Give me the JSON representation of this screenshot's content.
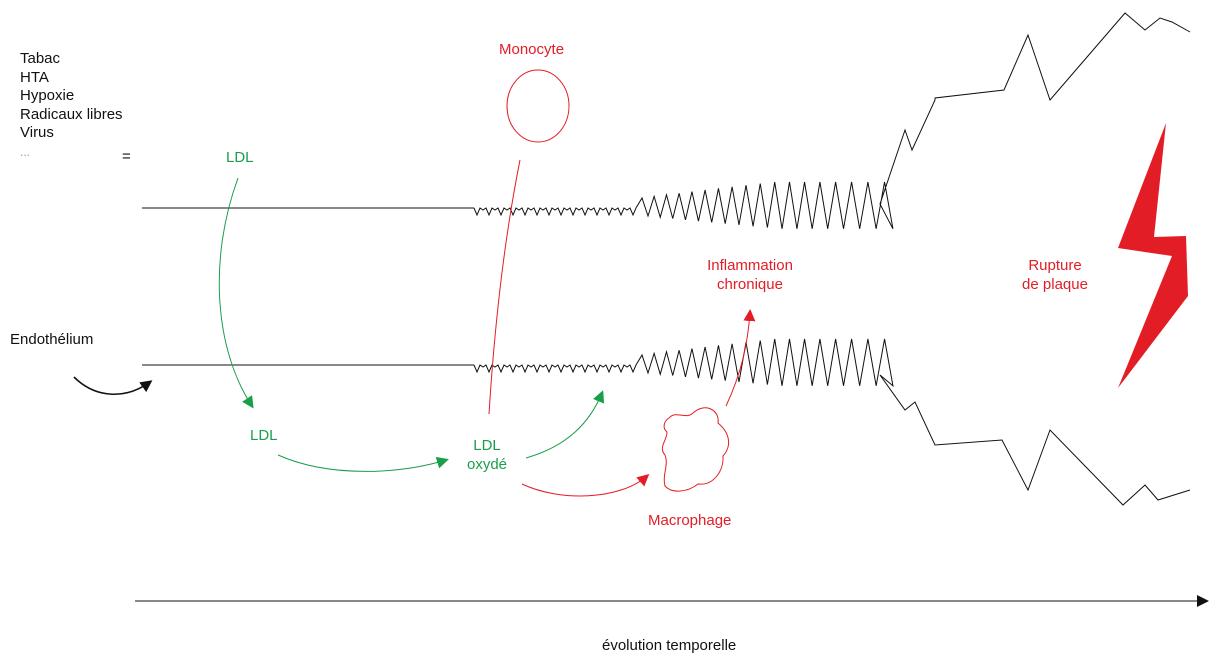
{
  "risk_factors": [
    "Tabac",
    "HTA",
    "Hypoxie",
    "Radicaux libres",
    "Virus",
    "..."
  ],
  "equals_sign": "=",
  "labels": {
    "ldl_top": "LDL",
    "ldl_mid": "LDL",
    "ldl_ox_line1": "LDL",
    "ldl_ox_line2": "oxydé",
    "monocyte": "Monocyte",
    "macrophage": "Macrophage",
    "inflammation_line1": "Inflammation",
    "inflammation_line2": "chronique",
    "rupture_line1": "Rupture",
    "rupture_line2": "de plaque",
    "endothelium": "Endothélium",
    "time_axis": "évolution temporelle"
  },
  "colors": {
    "green": "#1a9e4b",
    "red": "#e31d25",
    "black": "#111111",
    "muted": "#999999"
  }
}
